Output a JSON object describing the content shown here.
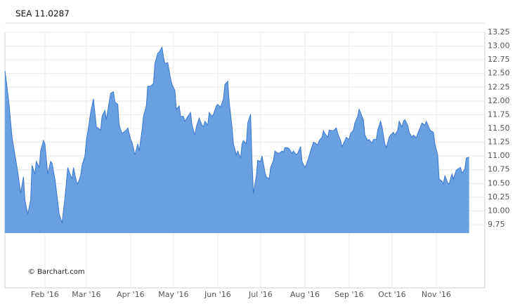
{
  "chart_data": {
    "type": "area",
    "title": "SEA 11.0287",
    "annotation": "© Barchart.com",
    "color": "#6a9fe2",
    "line_color": "#3b78d0",
    "grid": true,
    "xlim": [
      4,
      340
    ],
    "ylim": [
      8.6,
      13.25
    ],
    "xticks": [
      {
        "value": 32,
        "label": "Feb '16"
      },
      {
        "value": 61,
        "label": "Mar '16"
      },
      {
        "value": 92,
        "label": "Apr '16"
      },
      {
        "value": 122,
        "label": "May '16"
      },
      {
        "value": 153,
        "label": "Jun '16"
      },
      {
        "value": 183,
        "label": "Jul '16"
      },
      {
        "value": 214,
        "label": "Aug '16"
      },
      {
        "value": 245,
        "label": "Sep '16"
      },
      {
        "value": 275,
        "label": "Oct '16"
      },
      {
        "value": 306,
        "label": "Nov '16"
      }
    ],
    "yticks": [
      9.75,
      {
        "value": 10,
        "label": "10.00"
      },
      10.25,
      {
        "value": 10.5,
        "label": "10.50"
      },
      10.75,
      {
        "value": 11,
        "label": "11.00"
      },
      11.25,
      {
        "value": 11.5,
        "label": "11.50"
      },
      11.75,
      {
        "value": 12,
        "label": "12.00"
      },
      12.25,
      {
        "value": 12.5,
        "label": "12.50"
      },
      12.75,
      {
        "value": 13,
        "label": "13.00"
      },
      13.25
    ],
    "x": [
      4,
      5,
      7,
      9,
      11,
      13,
      15,
      17,
      18,
      20,
      22,
      23,
      25,
      26,
      28,
      29,
      31,
      32,
      34,
      36,
      37,
      39,
      41,
      42,
      44,
      46,
      48,
      49,
      51,
      52,
      54,
      55,
      57,
      58,
      60,
      61,
      63,
      64,
      66,
      68,
      69,
      71,
      72,
      74,
      75,
      77,
      78,
      80,
      81,
      83,
      84,
      86,
      87,
      89,
      90,
      92,
      93,
      95,
      97,
      98,
      100,
      101,
      103,
      104,
      106,
      108,
      109,
      111,
      112,
      114,
      115,
      116,
      118,
      120,
      121,
      123,
      124,
      126,
      127,
      129,
      130,
      132,
      134,
      135,
      137,
      138,
      140,
      142,
      143,
      144,
      146,
      147,
      149,
      150,
      152,
      153,
      155,
      157,
      158,
      160,
      161,
      163,
      164,
      166,
      167,
      169,
      170,
      171,
      173,
      174,
      176,
      177,
      178,
      180,
      181,
      183,
      184,
      186,
      187,
      189,
      190,
      192,
      193,
      195,
      196,
      198,
      199,
      200,
      202,
      203,
      205,
      206,
      208,
      209,
      211,
      212,
      214,
      215,
      217,
      218,
      220,
      221,
      223,
      224,
      226,
      227,
      228,
      230,
      231,
      233,
      234,
      236,
      237,
      239,
      240,
      242,
      243,
      245,
      246,
      248,
      249,
      251,
      252,
      254,
      255,
      256,
      258,
      259,
      261,
      262,
      264,
      265,
      267,
      268,
      270,
      271,
      273,
      274,
      276,
      277,
      279,
      280,
      282,
      283,
      284,
      286,
      287,
      289,
      290,
      292,
      293,
      295,
      296,
      298,
      299,
      301,
      302,
      304,
      305,
      307,
      308,
      310,
      311,
      312,
      314,
      315,
      317,
      318,
      320,
      321,
      323,
      324,
      326,
      327,
      329
    ],
    "values": [
      12.55,
      12.36,
      11.91,
      11.34,
      11.02,
      10.71,
      10.32,
      10.62,
      10.2,
      9.94,
      10.2,
      10.83,
      10.67,
      10.9,
      10.79,
      11.09,
      11.28,
      11.22,
      10.67,
      10.9,
      10.87,
      10.58,
      10.16,
      9.94,
      9.78,
      10.23,
      10.79,
      10.71,
      10.58,
      10.79,
      10.54,
      10.49,
      10.64,
      10.83,
      11.0,
      11.28,
      11.6,
      11.79,
      12.04,
      11.53,
      11.51,
      11.47,
      11.72,
      11.83,
      11.66,
      11.98,
      12.14,
      12.17,
      11.98,
      11.94,
      11.56,
      11.41,
      11.43,
      11.47,
      11.51,
      11.3,
      11.25,
      11.02,
      11.22,
      11.09,
      11.47,
      11.72,
      11.91,
      12.27,
      12.27,
      12.32,
      12.68,
      12.87,
      12.89,
      12.98,
      12.8,
      12.68,
      12.7,
      12.4,
      12.3,
      12.19,
      11.85,
      11.91,
      11.72,
      11.72,
      11.63,
      11.72,
      11.79,
      11.56,
      11.38,
      11.53,
      11.69,
      11.56,
      11.53,
      11.63,
      11.56,
      11.79,
      11.72,
      11.76,
      11.91,
      11.94,
      11.89,
      12.04,
      12.3,
      12.36,
      11.98,
      11.53,
      11.22,
      11.02,
      11.09,
      10.96,
      11.22,
      11.28,
      11.22,
      11.6,
      11.76,
      10.9,
      10.32,
      10.64,
      10.92,
      10.9,
      11.0,
      10.71,
      10.62,
      10.58,
      10.79,
      10.92,
      11.09,
      11.05,
      11.05,
      11.09,
      11.07,
      11.15,
      11.15,
      11.13,
      11.05,
      11.09,
      11.02,
      11.05,
      11.17,
      10.9,
      10.79,
      10.84,
      11.0,
      11.09,
      11.25,
      11.24,
      11.2,
      11.28,
      11.34,
      11.46,
      11.41,
      11.34,
      11.47,
      11.46,
      11.46,
      11.51,
      11.41,
      11.28,
      11.17,
      11.28,
      11.34,
      11.3,
      11.41,
      11.47,
      11.6,
      11.72,
      11.85,
      11.72,
      11.66,
      11.38,
      11.28,
      11.3,
      11.23,
      11.3,
      11.3,
      11.47,
      11.63,
      11.53,
      11.22,
      11.15,
      11.34,
      11.38,
      11.43,
      11.38,
      11.47,
      11.63,
      11.53,
      11.63,
      11.66,
      11.56,
      11.43,
      11.34,
      11.38,
      11.33,
      11.41,
      11.53,
      11.6,
      11.56,
      11.63,
      11.51,
      11.46,
      11.43,
      11.22,
      11.02,
      10.58,
      10.54,
      10.49,
      10.64,
      10.51,
      10.49,
      10.67,
      10.58,
      10.74,
      10.76,
      10.79,
      10.69,
      10.76,
      10.96,
      10.98
    ]
  }
}
